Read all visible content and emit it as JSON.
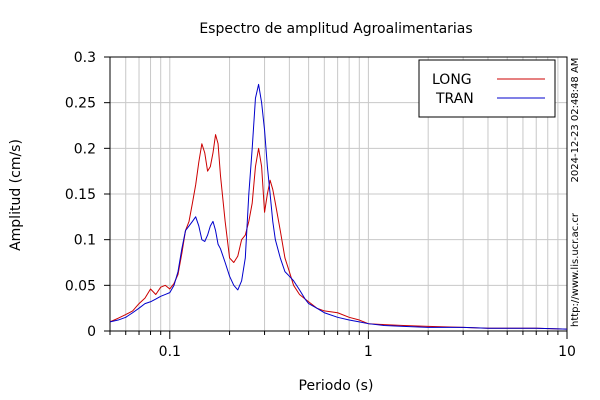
{
  "chart_data": {
    "type": "line",
    "title": "Espectro de amplitud Agroalimentarias",
    "xlabel": "Periodo (s)",
    "ylabel": "Amplitud (cm/s)",
    "x_scale": "log",
    "xlim": [
      0.05,
      10
    ],
    "ylim": [
      0,
      0.3
    ],
    "grid": true,
    "legend_position": "top-right",
    "x_ticks": [
      {
        "value": 0.1,
        "label": "0.1"
      },
      {
        "value": 1,
        "label": "1"
      },
      {
        "value": 10,
        "label": "10"
      }
    ],
    "y_ticks": [
      {
        "value": 0,
        "label": "0"
      },
      {
        "value": 0.05,
        "label": "0.05"
      },
      {
        "value": 0.1,
        "label": "0.1"
      },
      {
        "value": 0.15,
        "label": "0.15"
      },
      {
        "value": 0.2,
        "label": "0.2"
      },
      {
        "value": 0.25,
        "label": "0.25"
      },
      {
        "value": 0.3,
        "label": "0.3"
      }
    ],
    "side_annotations": [
      "2024-12-23 02:48:48 AM",
      "http://www.lis.ucr.ac.cr"
    ],
    "series": [
      {
        "name": "LONG",
        "color": "#cc0000",
        "points": [
          [
            0.05,
            0.01
          ],
          [
            0.055,
            0.014
          ],
          [
            0.06,
            0.018
          ],
          [
            0.065,
            0.022
          ],
          [
            0.07,
            0.03
          ],
          [
            0.075,
            0.036
          ],
          [
            0.08,
            0.046
          ],
          [
            0.085,
            0.04
          ],
          [
            0.09,
            0.048
          ],
          [
            0.095,
            0.05
          ],
          [
            0.1,
            0.046
          ],
          [
            0.105,
            0.052
          ],
          [
            0.11,
            0.062
          ],
          [
            0.115,
            0.085
          ],
          [
            0.12,
            0.11
          ],
          [
            0.125,
            0.12
          ],
          [
            0.13,
            0.14
          ],
          [
            0.135,
            0.16
          ],
          [
            0.14,
            0.185
          ],
          [
            0.145,
            0.205
          ],
          [
            0.15,
            0.195
          ],
          [
            0.155,
            0.175
          ],
          [
            0.16,
            0.18
          ],
          [
            0.165,
            0.195
          ],
          [
            0.17,
            0.215
          ],
          [
            0.175,
            0.205
          ],
          [
            0.18,
            0.17
          ],
          [
            0.19,
            0.12
          ],
          [
            0.2,
            0.08
          ],
          [
            0.21,
            0.075
          ],
          [
            0.22,
            0.082
          ],
          [
            0.23,
            0.1
          ],
          [
            0.24,
            0.105
          ],
          [
            0.25,
            0.12
          ],
          [
            0.26,
            0.14
          ],
          [
            0.27,
            0.18
          ],
          [
            0.28,
            0.2
          ],
          [
            0.29,
            0.18
          ],
          [
            0.3,
            0.13
          ],
          [
            0.31,
            0.15
          ],
          [
            0.32,
            0.165
          ],
          [
            0.33,
            0.155
          ],
          [
            0.34,
            0.14
          ],
          [
            0.36,
            0.11
          ],
          [
            0.38,
            0.08
          ],
          [
            0.4,
            0.065
          ],
          [
            0.42,
            0.05
          ],
          [
            0.45,
            0.04
          ],
          [
            0.48,
            0.035
          ],
          [
            0.5,
            0.032
          ],
          [
            0.55,
            0.025
          ],
          [
            0.6,
            0.022
          ],
          [
            0.7,
            0.02
          ],
          [
            0.8,
            0.015
          ],
          [
            0.9,
            0.012
          ],
          [
            1.0,
            0.008
          ],
          [
            1.2,
            0.007
          ],
          [
            1.5,
            0.006
          ],
          [
            2.0,
            0.005
          ],
          [
            3.0,
            0.004
          ],
          [
            4.0,
            0.003
          ],
          [
            5.0,
            0.003
          ],
          [
            7.0,
            0.003
          ],
          [
            10.0,
            0.002
          ]
        ]
      },
      {
        "name": "TRAN",
        "color": "#0000cc",
        "points": [
          [
            0.05,
            0.01
          ],
          [
            0.055,
            0.012
          ],
          [
            0.06,
            0.015
          ],
          [
            0.065,
            0.02
          ],
          [
            0.07,
            0.025
          ],
          [
            0.075,
            0.03
          ],
          [
            0.08,
            0.032
          ],
          [
            0.085,
            0.035
          ],
          [
            0.09,
            0.038
          ],
          [
            0.095,
            0.04
          ],
          [
            0.1,
            0.042
          ],
          [
            0.105,
            0.05
          ],
          [
            0.11,
            0.065
          ],
          [
            0.115,
            0.09
          ],
          [
            0.12,
            0.11
          ],
          [
            0.125,
            0.115
          ],
          [
            0.13,
            0.12
          ],
          [
            0.135,
            0.125
          ],
          [
            0.14,
            0.115
          ],
          [
            0.145,
            0.1
          ],
          [
            0.15,
            0.098
          ],
          [
            0.155,
            0.105
          ],
          [
            0.16,
            0.115
          ],
          [
            0.165,
            0.12
          ],
          [
            0.17,
            0.11
          ],
          [
            0.175,
            0.095
          ],
          [
            0.18,
            0.09
          ],
          [
            0.19,
            0.075
          ],
          [
            0.2,
            0.06
          ],
          [
            0.21,
            0.05
          ],
          [
            0.22,
            0.045
          ],
          [
            0.23,
            0.055
          ],
          [
            0.24,
            0.08
          ],
          [
            0.25,
            0.15
          ],
          [
            0.26,
            0.2
          ],
          [
            0.27,
            0.255
          ],
          [
            0.28,
            0.27
          ],
          [
            0.29,
            0.25
          ],
          [
            0.3,
            0.22
          ],
          [
            0.31,
            0.18
          ],
          [
            0.32,
            0.15
          ],
          [
            0.33,
            0.12
          ],
          [
            0.34,
            0.1
          ],
          [
            0.36,
            0.08
          ],
          [
            0.38,
            0.065
          ],
          [
            0.4,
            0.06
          ],
          [
            0.42,
            0.055
          ],
          [
            0.45,
            0.045
          ],
          [
            0.48,
            0.035
          ],
          [
            0.5,
            0.03
          ],
          [
            0.55,
            0.025
          ],
          [
            0.6,
            0.02
          ],
          [
            0.7,
            0.015
          ],
          [
            0.8,
            0.012
          ],
          [
            0.9,
            0.01
          ],
          [
            1.0,
            0.008
          ],
          [
            1.2,
            0.006
          ],
          [
            1.5,
            0.005
          ],
          [
            2.0,
            0.004
          ],
          [
            3.0,
            0.004
          ],
          [
            4.0,
            0.003
          ],
          [
            5.0,
            0.003
          ],
          [
            7.0,
            0.003
          ],
          [
            10.0,
            0.002
          ]
        ]
      }
    ]
  }
}
